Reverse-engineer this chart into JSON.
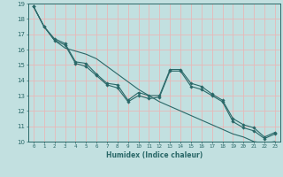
{
  "xlabel": "Humidex (Indice chaleur)",
  "xlim": [
    -0.5,
    23.5
  ],
  "ylim": [
    10,
    19
  ],
  "yticks": [
    10,
    11,
    12,
    13,
    14,
    15,
    16,
    17,
    18,
    19
  ],
  "xticks": [
    0,
    1,
    2,
    3,
    4,
    5,
    6,
    7,
    8,
    9,
    10,
    11,
    12,
    13,
    14,
    15,
    16,
    17,
    18,
    19,
    20,
    21,
    22,
    23
  ],
  "bg_color": "#c2e0e0",
  "grid_color": "#e8b8b8",
  "line_color": "#2a6868",
  "series1": [
    18.8,
    17.5,
    16.7,
    16.4,
    15.2,
    15.1,
    14.4,
    13.8,
    13.7,
    12.7,
    13.2,
    13.0,
    13.0,
    14.7,
    14.7,
    13.8,
    13.6,
    13.1,
    12.7,
    11.5,
    11.1,
    10.9,
    10.3,
    10.6
  ],
  "series2": [
    18.8,
    17.5,
    16.6,
    16.3,
    15.1,
    14.9,
    14.3,
    13.7,
    13.5,
    12.6,
    13.0,
    12.8,
    12.9,
    14.6,
    14.6,
    13.6,
    13.4,
    13.0,
    12.6,
    11.3,
    10.9,
    10.7,
    10.2,
    10.5
  ],
  "series3": [
    18.8,
    17.5,
    16.6,
    16.1,
    15.9,
    15.7,
    15.4,
    14.9,
    14.4,
    13.9,
    13.4,
    13.0,
    12.6,
    12.3,
    12.0,
    11.7,
    11.4,
    11.1,
    10.8,
    10.5,
    10.3,
    10.0,
    9.9,
    10.0
  ]
}
